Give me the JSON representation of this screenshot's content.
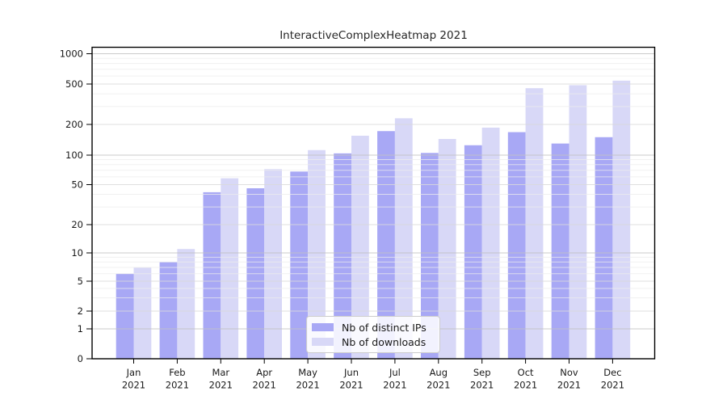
{
  "chart_data": {
    "type": "bar",
    "title": "InteractiveComplexHeatmap 2021",
    "categories": [
      "Jan",
      "Feb",
      "Mar",
      "Apr",
      "May",
      "Jun",
      "Jul",
      "Aug",
      "Sep",
      "Oct",
      "Nov",
      "Dec"
    ],
    "category_year": "2021",
    "series": [
      {
        "name": "Nb of distinct IPs",
        "color": "#a8a8f5",
        "values": [
          6,
          8,
          42,
          46,
          68,
          104,
          172,
          105,
          125,
          168,
          130,
          150
        ]
      },
      {
        "name": "Nb of downloads",
        "color": "#d8d8f7",
        "values": [
          7,
          11,
          58,
          72,
          112,
          155,
          230,
          144,
          186,
          455,
          487,
          540
        ]
      }
    ],
    "xlabel": "",
    "ylabel": "",
    "yticks": [
      0,
      1,
      2,
      5,
      10,
      20,
      50,
      100,
      200,
      500,
      1000
    ],
    "ylim": [
      0,
      1000
    ],
    "scale": "log-like with zero baseline",
    "grid": "horizontal major and minor, drawn over bars",
    "legend_position": "inside bottom-center",
    "colors": {
      "decade_gridline": "#c2c2c2",
      "major_gridline": "#d9d9d9",
      "minor_gridline": "#ececec",
      "spine": "#000000",
      "tick_label": "#191919",
      "title_text": "#262626"
    }
  }
}
